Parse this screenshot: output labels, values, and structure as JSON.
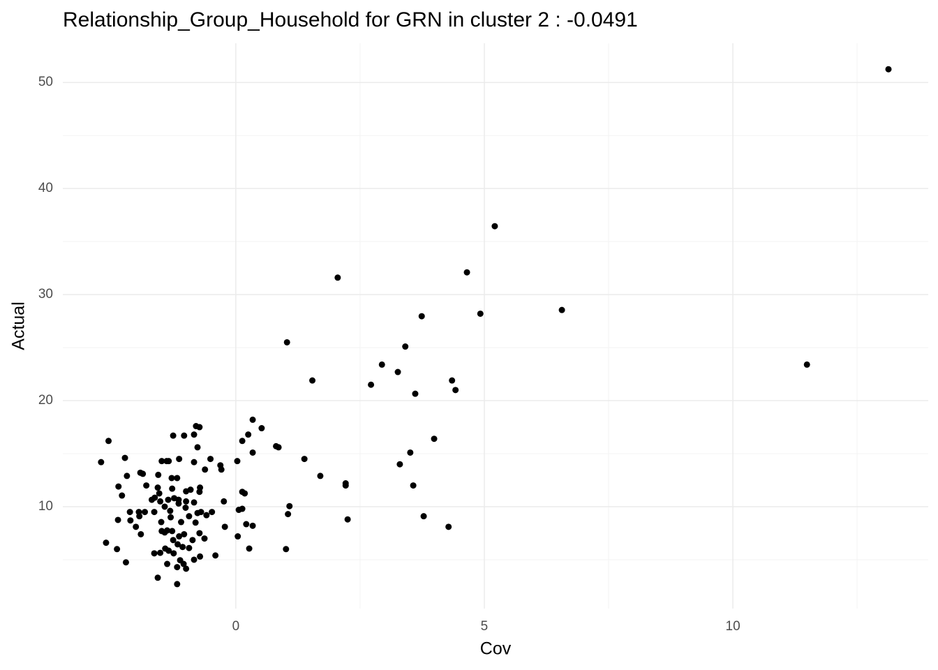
{
  "chart_data": {
    "type": "scatter",
    "title": "Relationship_Group_Household for GRN in cluster 2 : -0.0491",
    "x_label": "Cov",
    "y_label": "Actual",
    "color": "#000000",
    "xlim": [
      -3.48,
      13.93
    ],
    "ylim": [
      0.39,
      53.7
    ],
    "xticks": [
      0,
      5,
      10
    ],
    "yticks": [
      10,
      20,
      30,
      40,
      50
    ],
    "x_minor_grid": [
      2.5,
      7.5,
      12.5
    ],
    "y_minor_grid": [
      5,
      15,
      25,
      35,
      45
    ],
    "grid": true,
    "x": [
      13.13,
      5.21,
      4.65,
      2.05,
      6.56,
      4.92,
      3.74,
      3.41,
      1.03,
      11.49,
      2.94,
      3.26,
      1.54,
      4.35,
      2.72,
      4.42,
      3.61,
      3.99,
      3.51,
      1.38,
      3.3,
      1.7,
      2.21,
      2.21,
      3.57,
      1.08,
      1.05,
      3.78,
      2.25,
      4.28,
      1.01,
      0.34,
      0.52,
      0.25,
      0.13,
      0.81,
      0.86,
      0.34,
      0.03,
      -0.31,
      -0.29,
      -0.51,
      -0.62,
      0.13,
      0.18,
      -0.24,
      0.06,
      0.13,
      -0.48,
      0.21,
      0.34,
      -0.22,
      0.04,
      0.27,
      -0.41,
      -0.73,
      -0.8,
      -0.84,
      -1.04,
      -1.26,
      -0.77,
      -0.84,
      -1.14,
      -1.35,
      -1.49,
      -1.39,
      -2.71,
      -2.56,
      -2.23,
      -2.19,
      -2.36,
      -2.29,
      -1.92,
      -1.87,
      -1.8,
      -1.56,
      -1.29,
      -1.18,
      -1.57,
      -1.28,
      -1.54,
      -1.0,
      -0.91,
      -0.72,
      -0.73,
      -1.69,
      -1.63,
      -1.52,
      -1.36,
      -1.24,
      -1.15,
      -1.0,
      -0.84,
      -1.01,
      -1.15,
      -1.43,
      -1.32,
      -2.13,
      -1.95,
      -1.83,
      -1.64,
      -1.94,
      -0.77,
      -0.7,
      -0.59,
      -0.94,
      -1.31,
      -2.37,
      -2.12,
      -2.01,
      -1.5,
      -1.1,
      -0.81,
      -1.49,
      -1.38,
      -1.28,
      -1.04,
      -1.91,
      -0.73,
      -0.63,
      -1.14,
      -0.87,
      -1.43,
      -1.26,
      -2.61,
      -1.17,
      -1.42,
      -1.07,
      -0.94,
      -2.39,
      -1.35,
      -1.64,
      -1.52,
      -0.72,
      -1.25,
      -1.12,
      -0.84,
      -2.21,
      -1.38,
      -1.05,
      -1.18,
      -1.0,
      -1.57,
      -1.18
    ],
    "values": [
      51.25,
      36.45,
      32.1,
      31.6,
      28.55,
      28.2,
      27.96,
      25.1,
      25.5,
      23.4,
      23.4,
      22.7,
      21.9,
      21.9,
      21.5,
      21.0,
      20.65,
      16.4,
      15.1,
      14.5,
      14.0,
      12.9,
      12.2,
      12.0,
      12.0,
      10.05,
      9.3,
      9.1,
      8.8,
      8.1,
      6.0,
      18.2,
      17.4,
      16.8,
      16.2,
      15.7,
      15.6,
      15.1,
      14.3,
      13.9,
      13.5,
      14.5,
      13.5,
      11.4,
      11.25,
      10.5,
      9.7,
      9.8,
      9.5,
      8.35,
      8.2,
      8.1,
      7.2,
      6.05,
      5.4,
      17.5,
      17.6,
      16.8,
      16.7,
      16.7,
      15.6,
      14.2,
      14.5,
      14.3,
      14.3,
      14.3,
      14.2,
      16.2,
      14.6,
      12.9,
      11.9,
      11.05,
      13.2,
      13.1,
      12.0,
      13.0,
      12.7,
      12.7,
      11.8,
      11.7,
      11.25,
      11.45,
      11.6,
      11.8,
      11.4,
      10.65,
      10.85,
      10.5,
      10.65,
      10.8,
      10.65,
      10.5,
      10.4,
      9.9,
      10.3,
      10.0,
      9.6,
      9.5,
      9.5,
      9.5,
      9.5,
      9.1,
      9.4,
      9.5,
      9.2,
      9.1,
      9.0,
      8.75,
      8.7,
      8.1,
      8.55,
      8.55,
      8.5,
      7.7,
      7.76,
      7.7,
      7.4,
      7.4,
      7.5,
      7.0,
      7.2,
      6.85,
      7.57,
      6.85,
      6.6,
      6.45,
      6.05,
      6.2,
      6.1,
      6.0,
      5.85,
      5.6,
      5.65,
      5.3,
      5.6,
      4.95,
      5.0,
      4.75,
      4.6,
      4.6,
      4.3,
      4.15,
      3.3,
      2.7
    ]
  }
}
